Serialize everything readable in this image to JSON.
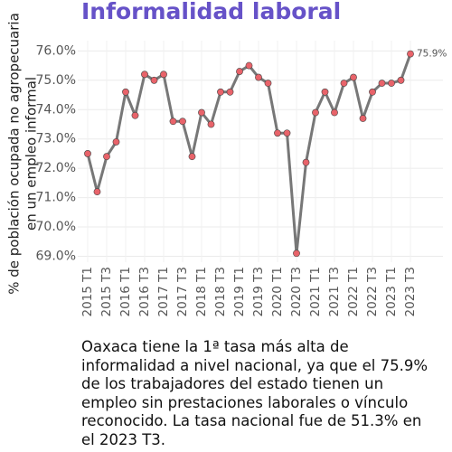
{
  "chart_data": {
    "type": "line",
    "title": "Informalidad laboral",
    "y_label": [
      "% de población ocupada no agropecuaria",
      "en un empleo informal"
    ],
    "categories": [
      "2015 T1",
      null,
      "2015 T3",
      null,
      "2016 T1",
      null,
      "2016 T3",
      null,
      "2017 T1",
      null,
      "2017 T3",
      null,
      "2018 T1",
      null,
      "2018 T3",
      null,
      "2019 T1",
      null,
      "2019 T3",
      null,
      "2020 T1",
      null,
      "2020 T3",
      null,
      "2021 T1",
      null,
      "2021 T3",
      null,
      "2022 T1",
      null,
      "2022 T3",
      null,
      "2023 T1",
      null,
      "2023 T3"
    ],
    "series": [
      {
        "name": null,
        "color": "#777777",
        "marker_color": "#e8636a",
        "values": [
          72.5,
          71.2,
          72.4,
          72.9,
          74.6,
          73.8,
          75.2,
          75.0,
          75.2,
          73.6,
          73.6,
          72.4,
          73.9,
          73.5,
          74.6,
          74.6,
          75.3,
          75.5,
          75.1,
          74.9,
          73.2,
          73.2,
          69.1,
          72.2,
          73.9,
          74.6,
          73.9,
          74.9,
          75.1,
          73.7,
          74.6,
          74.9,
          74.9,
          75.0,
          75.9
        ],
        "value_labels": [
          null,
          null,
          null,
          null,
          null,
          null,
          null,
          null,
          null,
          null,
          null,
          null,
          null,
          null,
          null,
          null,
          null,
          null,
          null,
          null,
          null,
          null,
          null,
          null,
          null,
          null,
          null,
          null,
          null,
          null,
          null,
          null,
          null,
          null,
          "75.9%"
        ]
      }
    ],
    "ylim": [
      68.8,
      76.35
    ],
    "yticks": [
      {
        "value": 69,
        "label": "69.0%"
      },
      {
        "value": 70,
        "label": "70.0%"
      },
      {
        "value": 71,
        "label": "71.0%"
      },
      {
        "value": 72,
        "label": "72.0%"
      },
      {
        "value": 73,
        "label": "73.0%"
      },
      {
        "value": 74,
        "label": "74.0%"
      },
      {
        "value": 75,
        "label": "75.0%"
      },
      {
        "value": 76,
        "label": "76.0%"
      }
    ],
    "grid": true,
    "caption": "Oaxaca tiene la 1ª tasa más alta de informalidad a nivel nacional, ya que el 75.9% de los trabajadores del estado tienen un empleo sin prestaciones laborales o vínculo reconocido. La tasa nacional fue de 51.3% en el 2023 T3."
  }
}
